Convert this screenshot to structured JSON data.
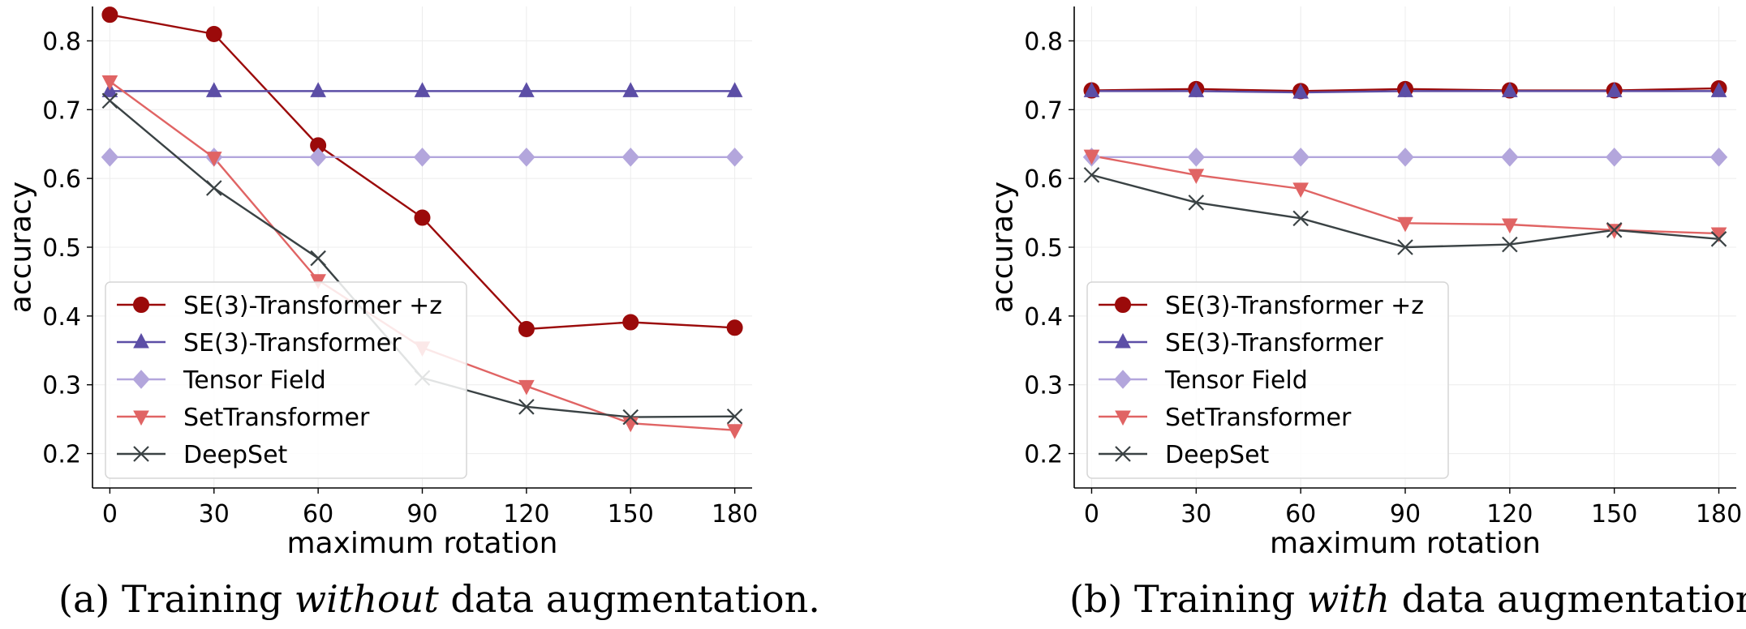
{
  "chart_data": [
    {
      "type": "line",
      "xlabel": "maximum rotation",
      "ylabel": "accuracy",
      "x": [
        0,
        30,
        60,
        90,
        120,
        150,
        180
      ],
      "xticks": [
        0,
        30,
        60,
        90,
        120,
        150,
        180
      ],
      "yticks": [
        0.2,
        0.3,
        0.4,
        0.5,
        0.6,
        0.7,
        0.8
      ],
      "xlim": [
        -5,
        185
      ],
      "ylim": [
        0.15,
        0.85
      ],
      "grid": true,
      "legend_position": "lower-left",
      "caption": {
        "prefix": "(a) Training ",
        "emphasis": "without",
        "suffix": " data augmentation."
      },
      "series": [
        {
          "name": "SE(3)-Transformer +z",
          "color": "#9b0a0a",
          "marker": "circle",
          "values": [
            0.838,
            0.81,
            0.648,
            0.543,
            0.381,
            0.391,
            0.383
          ]
        },
        {
          "name": "SE(3)-Transformer",
          "color": "#5c4ea6",
          "marker": "triangle-up",
          "values": [
            0.727,
            0.727,
            0.727,
            0.727,
            0.727,
            0.727,
            0.727
          ]
        },
        {
          "name": "Tensor Field",
          "color": "#b3a6dc",
          "marker": "diamond",
          "values": [
            0.631,
            0.631,
            0.631,
            0.631,
            0.631,
            0.631,
            0.631
          ]
        },
        {
          "name": "SetTransformer",
          "color": "#e06464",
          "marker": "triangle-down",
          "values": [
            0.741,
            0.63,
            0.452,
            0.354,
            0.298,
            0.244,
            0.234
          ]
        },
        {
          "name": "DeepSet",
          "color": "#3a4244",
          "marker": "x",
          "values": [
            0.713,
            0.586,
            0.484,
            0.31,
            0.268,
            0.253,
            0.254
          ]
        }
      ]
    },
    {
      "type": "line",
      "xlabel": "maximum rotation",
      "ylabel": "accuracy",
      "x": [
        0,
        30,
        60,
        90,
        120,
        150,
        180
      ],
      "xticks": [
        0,
        30,
        60,
        90,
        120,
        150,
        180
      ],
      "yticks": [
        0.2,
        0.3,
        0.4,
        0.5,
        0.6,
        0.7,
        0.8
      ],
      "xlim": [
        -5,
        185
      ],
      "ylim": [
        0.15,
        0.85
      ],
      "grid": true,
      "legend_position": "lower-left",
      "caption": {
        "prefix": "(b) Training ",
        "emphasis": "with",
        "suffix": " data augmentation."
      },
      "series": [
        {
          "name": "SE(3)-Transformer +z",
          "color": "#9b0a0a",
          "marker": "circle",
          "values": [
            0.728,
            0.73,
            0.727,
            0.73,
            0.728,
            0.728,
            0.731
          ]
        },
        {
          "name": "SE(3)-Transformer",
          "color": "#5c4ea6",
          "marker": "triangle-up",
          "values": [
            0.727,
            0.727,
            0.725,
            0.727,
            0.727,
            0.727,
            0.727
          ]
        },
        {
          "name": "Tensor Field",
          "color": "#b3a6dc",
          "marker": "diamond",
          "values": [
            0.631,
            0.631,
            0.631,
            0.631,
            0.631,
            0.631,
            0.631
          ]
        },
        {
          "name": "SetTransformer",
          "color": "#e06464",
          "marker": "triangle-down",
          "values": [
            0.633,
            0.605,
            0.585,
            0.535,
            0.533,
            0.525,
            0.52
          ]
        },
        {
          "name": "DeepSet",
          "color": "#3a4244",
          "marker": "x",
          "values": [
            0.605,
            0.565,
            0.542,
            0.5,
            0.504,
            0.525,
            0.512
          ]
        }
      ]
    }
  ]
}
